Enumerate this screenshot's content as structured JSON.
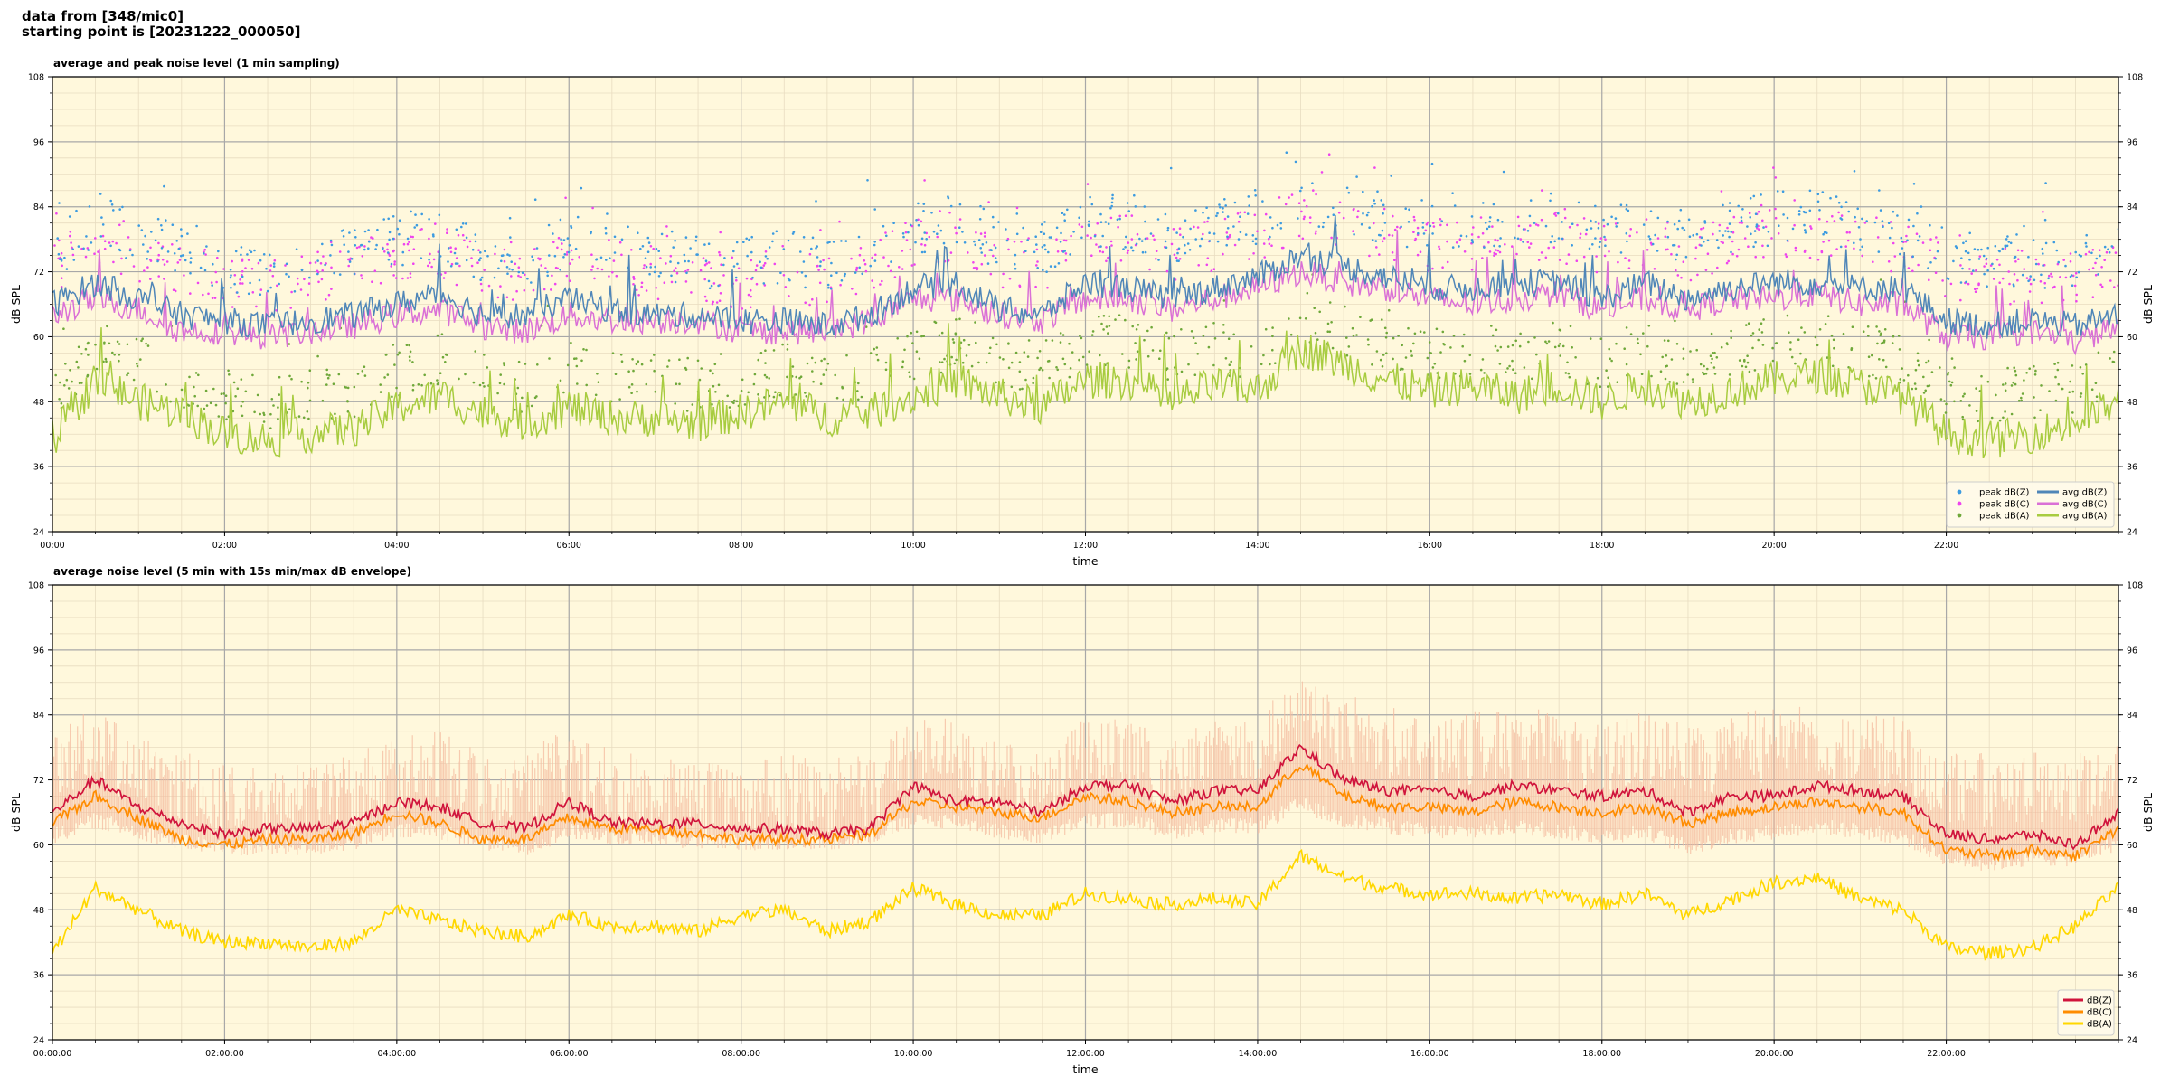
{
  "header": {
    "line1": "data from [348/mic0]",
    "line2": "starting point is [20231222_000050]"
  },
  "colors": {
    "background": "#fff8dc",
    "zAvg": "#4f86b8",
    "cAvg": "#da70d6",
    "aAvg": "#a8cc40",
    "zPeak": "#3c9be0",
    "cPeak": "#ee44ee",
    "aPeak": "#6fa83a",
    "z5": "#d0143c",
    "c5": "#ff8c00",
    "a5": "#ffd700",
    "envelope": "#f5bca0"
  },
  "chart_data": [
    {
      "type": "line",
      "title": "average and peak noise level (1 min sampling)",
      "xlabel": "time",
      "ylabel": "dB SPL",
      "ylim": [
        24,
        108
      ],
      "yticks": [
        24,
        36,
        48,
        60,
        72,
        84,
        96,
        108
      ],
      "xlim_hours": [
        0,
        24
      ],
      "xtick_labels": [
        "00:00",
        "02:00",
        "04:00",
        "06:00",
        "08:00",
        "10:00",
        "12:00",
        "14:00",
        "16:00",
        "18:00",
        "20:00",
        "22:00"
      ],
      "grid": true,
      "legend_position": "lower-right",
      "legend": [
        "peak dB(Z)",
        "peak dB(C)",
        "peak dB(A)",
        "avg dB(Z)",
        "avg dB(C)",
        "avg dB(A)"
      ],
      "x_hours": [
        0,
        0.5,
        1,
        1.5,
        2,
        2.5,
        3,
        3.5,
        4,
        4.5,
        5,
        5.5,
        6,
        6.5,
        7,
        7.5,
        8,
        8.5,
        9,
        9.5,
        10,
        10.5,
        11,
        11.5,
        12,
        12.5,
        13,
        13.5,
        14,
        14.5,
        15,
        15.5,
        16,
        16.5,
        17,
        17.5,
        18,
        18.5,
        19,
        19.5,
        20,
        20.5,
        21,
        21.5,
        22,
        22.5,
        23,
        23.5,
        24
      ],
      "series": [
        {
          "name": "avg dB(Z)",
          "values": [
            66,
            70,
            67,
            64,
            63,
            62,
            63,
            64,
            66,
            68,
            64,
            64,
            67,
            65,
            64,
            64,
            63,
            63,
            62,
            64,
            69,
            70,
            65,
            64,
            70,
            69,
            67,
            69,
            71,
            75,
            73,
            71,
            69,
            69,
            70,
            70,
            67,
            70,
            67,
            69,
            70,
            70,
            69,
            69,
            63,
            62,
            63,
            62,
            64
          ]
        },
        {
          "name": "avg dB(C)",
          "values": [
            64,
            67,
            65,
            61,
            61,
            60,
            61,
            62,
            64,
            65,
            62,
            61,
            64,
            63,
            63,
            63,
            61,
            61,
            61,
            63,
            67,
            67,
            64,
            63,
            67,
            67,
            65,
            67,
            69,
            72,
            70,
            69,
            67,
            66,
            67,
            68,
            65,
            67,
            65,
            67,
            67,
            68,
            66,
            66,
            60,
            60,
            61,
            59,
            62
          ]
        },
        {
          "name": "avg dB(A)",
          "values": [
            41,
            52,
            48,
            46,
            42,
            41,
            42,
            43,
            47,
            49,
            46,
            44,
            47,
            45,
            45,
            44,
            46,
            48,
            45,
            46,
            49,
            52,
            49,
            47,
            52,
            52,
            48,
            51,
            50,
            58,
            55,
            52,
            50,
            51,
            49,
            51,
            48,
            51,
            48,
            50,
            52,
            53,
            51,
            49,
            42,
            41,
            42,
            44,
            48
          ]
        },
        {
          "name": "peak dB(Z)",
          "values": [
            75,
            82,
            78,
            76,
            73,
            72,
            74,
            75,
            78,
            79,
            75,
            74,
            78,
            76,
            75,
            74,
            73,
            75,
            73,
            76,
            80,
            82,
            77,
            76,
            82,
            81,
            78,
            80,
            82,
            86,
            84,
            82,
            80,
            80,
            81,
            82,
            79,
            81,
            78,
            80,
            82,
            82,
            80,
            80,
            75,
            74,
            74,
            74,
            76
          ]
        },
        {
          "name": "peak dB(C)",
          "values": [
            72,
            79,
            75,
            73,
            70,
            69,
            71,
            72,
            75,
            76,
            72,
            71,
            75,
            73,
            72,
            71,
            70,
            72,
            70,
            73,
            77,
            79,
            74,
            73,
            79,
            78,
            75,
            77,
            79,
            83,
            81,
            79,
            77,
            77,
            78,
            79,
            76,
            78,
            75,
            77,
            79,
            79,
            77,
            77,
            72,
            71,
            71,
            71,
            73
          ]
        },
        {
          "name": "peak dB(A)",
          "values": [
            50,
            58,
            55,
            52,
            49,
            48,
            49,
            50,
            54,
            56,
            52,
            51,
            54,
            52,
            52,
            51,
            52,
            54,
            51,
            53,
            57,
            59,
            56,
            54,
            59,
            59,
            56,
            58,
            57,
            64,
            61,
            59,
            57,
            58,
            56,
            58,
            55,
            58,
            55,
            57,
            59,
            60,
            58,
            56,
            50,
            49,
            50,
            51,
            55
          ]
        }
      ]
    },
    {
      "type": "line",
      "title": "average noise level (5 min with 15s min/max dB envelope)",
      "xlabel": "time",
      "ylabel": "dB SPL",
      "ylim": [
        24,
        108
      ],
      "yticks": [
        24,
        36,
        48,
        60,
        72,
        84,
        96,
        108
      ],
      "xlim_hours": [
        0,
        24
      ],
      "xtick_labels": [
        "00:00:00",
        "02:00:00",
        "04:00:00",
        "06:00:00",
        "08:00:00",
        "10:00:00",
        "12:00:00",
        "14:00:00",
        "16:00:00",
        "18:00:00",
        "20:00:00",
        "22:00:00"
      ],
      "grid": true,
      "legend_position": "lower-right",
      "legend": [
        "dB(Z)",
        "dB(C)",
        "dB(A)"
      ],
      "x_hours": [
        0,
        0.5,
        1,
        1.5,
        2,
        2.5,
        3,
        3.5,
        4,
        4.5,
        5,
        5.5,
        6,
        6.5,
        7,
        7.5,
        8,
        8.5,
        9,
        9.5,
        10,
        10.5,
        11,
        11.5,
        12,
        12.5,
        13,
        13.5,
        14,
        14.5,
        15,
        15.5,
        16,
        16.5,
        17,
        17.5,
        18,
        18.5,
        19,
        19.5,
        20,
        20.5,
        21,
        21.5,
        22,
        22.5,
        23,
        23.5,
        24
      ],
      "series": [
        {
          "name": "dB(Z)",
          "values": [
            66,
            72,
            67,
            64,
            62,
            63,
            63,
            64,
            68,
            67,
            64,
            63,
            68,
            64,
            64,
            64,
            63,
            63,
            62,
            63,
            71,
            68,
            68,
            66,
            71,
            71,
            68,
            70,
            70,
            78,
            72,
            70,
            70,
            69,
            71,
            70,
            69,
            70,
            66,
            69,
            69,
            71,
            70,
            69,
            62,
            61,
            62,
            60,
            66
          ]
        },
        {
          "name": "dB(C)",
          "values": [
            64,
            69,
            65,
            61,
            60,
            61,
            61,
            62,
            66,
            64,
            61,
            61,
            65,
            63,
            63,
            62,
            61,
            61,
            61,
            62,
            68,
            67,
            66,
            65,
            69,
            68,
            66,
            67,
            67,
            75,
            69,
            67,
            67,
            66,
            68,
            67,
            66,
            67,
            64,
            66,
            67,
            68,
            67,
            66,
            59,
            58,
            59,
            58,
            63
          ]
        },
        {
          "name": "dB(A)",
          "values": [
            40,
            52,
            48,
            44,
            42,
            42,
            41,
            42,
            48,
            46,
            44,
            43,
            47,
            45,
            45,
            44,
            47,
            48,
            44,
            46,
            52,
            49,
            47,
            47,
            51,
            50,
            49,
            50,
            49,
            58,
            54,
            52,
            51,
            51,
            50,
            51,
            49,
            51,
            47,
            50,
            53,
            54,
            50,
            48,
            41,
            40,
            41,
            45,
            52
          ]
        },
        {
          "name": "envelope max",
          "values": [
            82,
            85,
            80,
            78,
            75,
            75,
            76,
            77,
            80,
            81,
            78,
            78,
            82,
            78,
            76,
            76,
            75,
            77,
            76,
            77,
            84,
            84,
            79,
            77,
            84,
            83,
            80,
            83,
            85,
            91,
            88,
            86,
            84,
            85,
            85,
            85,
            82,
            85,
            82,
            84,
            86,
            86,
            84,
            84,
            78,
            77,
            77,
            78,
            80
          ]
        },
        {
          "name": "envelope min",
          "values": [
            60,
            63,
            61,
            59,
            58,
            58,
            58,
            59,
            61,
            61,
            59,
            58,
            61,
            60,
            60,
            59,
            59,
            59,
            59,
            60,
            63,
            63,
            61,
            60,
            63,
            63,
            61,
            62,
            62,
            66,
            63,
            62,
            61,
            61,
            62,
            61,
            60,
            61,
            58,
            60,
            61,
            62,
            61,
            60,
            56,
            55,
            56,
            56,
            59
          ]
        }
      ]
    }
  ]
}
